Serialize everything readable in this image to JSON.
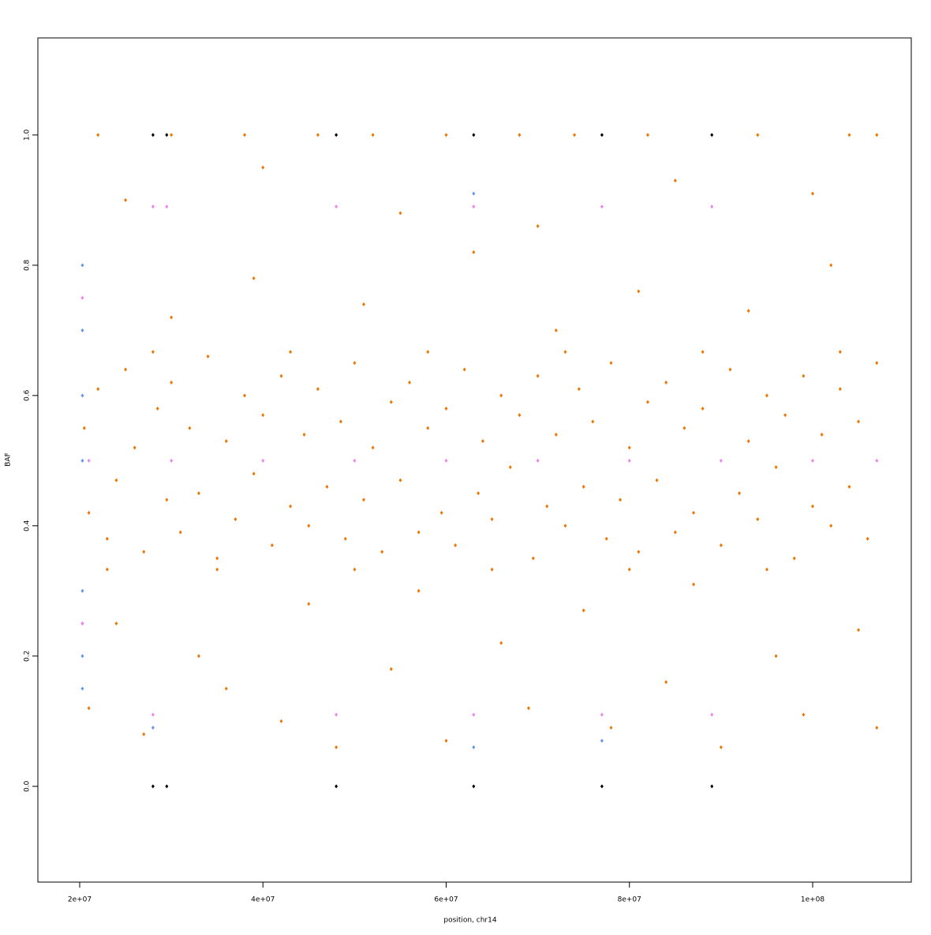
{
  "chart_data": {
    "type": "scatter",
    "xlabel": "position, chr14",
    "ylabel": "BAF",
    "xlim": [
      15436000,
      110764000
    ],
    "ylim": [
      -0.147,
      1.149
    ],
    "xticks": [
      {
        "value": 20000000,
        "label": "2e+07"
      },
      {
        "value": 40000000,
        "label": "4e+07"
      },
      {
        "value": 60000000,
        "label": "6e+07"
      },
      {
        "value": 80000000,
        "label": "8e+07"
      },
      {
        "value": 100000000,
        "label": "1e+08"
      }
    ],
    "yticks": [
      {
        "value": 0,
        "label": "0.0"
      },
      0.2,
      0.4,
      0.6,
      0.8,
      {
        "value": 1,
        "label": "1.0"
      }
    ],
    "series": [
      {
        "color": "#ee7600",
        "x": [
          20500000,
          21000000,
          22000000,
          23000000,
          24000000,
          25000000,
          26000000,
          27000000,
          28500000,
          29500000,
          30000000,
          31000000,
          32000000,
          33000000,
          34000000,
          35000000,
          36000000,
          37000000,
          38000000,
          39000000,
          40000000,
          41000000,
          42000000,
          43000000,
          44500000,
          45000000,
          46000000,
          47000000,
          48500000,
          49000000,
          50000000,
          51000000,
          52000000,
          53000000,
          54000000,
          55000000,
          56000000,
          57000000,
          58000000,
          59500000,
          60000000,
          61000000,
          62000000,
          63500000,
          64000000,
          65000000,
          66000000,
          67000000,
          68000000,
          69500000,
          70000000,
          71000000,
          72000000,
          73000000,
          74500000,
          75000000,
          76000000,
          77500000,
          78000000,
          79000000,
          80000000,
          81000000,
          82000000,
          83000000,
          84000000,
          85000000,
          86000000,
          87000000,
          88000000,
          90000000,
          91000000,
          92000000,
          93000000,
          94000000,
          95000000,
          96000000,
          97000000,
          98000000,
          99000000,
          100000000,
          101000000,
          102000000,
          103000000,
          104000000,
          105000000,
          106000000,
          107000000,
          21000000,
          24000000,
          27000000,
          30000000,
          33000000,
          36000000,
          39000000,
          42000000,
          45000000,
          48000000,
          51000000,
          54000000,
          57000000,
          60000000,
          63000000,
          66000000,
          69000000,
          72000000,
          75000000,
          78000000,
          81000000,
          84000000,
          87000000,
          90000000,
          93000000,
          96000000,
          99000000,
          102000000,
          105000000,
          107000000,
          25000000,
          40000000,
          55000000,
          70000000,
          85000000,
          100000000,
          22000000,
          30000000,
          38000000,
          46000000,
          52000000,
          60000000,
          68000000,
          74000000,
          82000000,
          94000000,
          104000000,
          107000000,
          23000000,
          35000000,
          50000000,
          65000000,
          80000000,
          95000000,
          28000000,
          43000000,
          58000000,
          73000000,
          88000000,
          103000000
        ],
        "values": [
          0.55,
          0.42,
          0.61,
          0.38,
          0.47,
          0.64,
          0.52,
          0.36,
          0.58,
          0.44,
          0.62,
          0.39,
          0.55,
          0.45,
          0.66,
          0.35,
          0.53,
          0.41,
          0.6,
          0.48,
          0.57,
          0.37,
          0.63,
          0.43,
          0.54,
          0.4,
          0.61,
          0.46,
          0.56,
          0.38,
          0.65,
          0.44,
          0.52,
          0.36,
          0.59,
          0.47,
          0.62,
          0.39,
          0.55,
          0.42,
          0.58,
          0.37,
          0.64,
          0.45,
          0.53,
          0.41,
          0.6,
          0.49,
          0.57,
          0.35,
          0.63,
          0.43,
          0.54,
          0.4,
          0.61,
          0.46,
          0.56,
          0.38,
          0.65,
          0.44,
          0.52,
          0.36,
          0.59,
          0.47,
          0.62,
          0.39,
          0.55,
          0.42,
          0.58,
          0.37,
          0.64,
          0.45,
          0.53,
          0.41,
          0.6,
          0.49,
          0.57,
          0.35,
          0.63,
          0.43,
          0.54,
          0.4,
          0.61,
          0.46,
          0.56,
          0.38,
          0.65,
          0.12,
          0.25,
          0.08,
          0.72,
          0.2,
          0.15,
          0.78,
          0.1,
          0.28,
          0.06,
          0.74,
          0.18,
          0.3,
          0.07,
          0.82,
          0.22,
          0.12,
          0.7,
          0.27,
          0.09,
          0.76,
          0.16,
          0.31,
          0.06,
          0.73,
          0.2,
          0.11,
          0.8,
          0.24,
          0.09,
          0.9,
          0.95,
          0.88,
          0.86,
          0.93,
          0.91,
          1,
          1,
          1,
          1,
          1,
          1,
          1,
          1,
          1,
          1,
          1,
          1,
          0.333,
          0.333,
          0.333,
          0.333,
          0.333,
          0.333,
          0.667,
          0.667,
          0.667,
          0.667,
          0.667,
          0.667
        ]
      },
      {
        "color": "#6495ed",
        "x": [
          20300000,
          20300000,
          20300000,
          20300000,
          20300000,
          20300000,
          20300000,
          20300000,
          28000000,
          63000000,
          63000000,
          77000000
        ],
        "values": [
          0.2,
          0.3,
          0.5,
          0.6,
          0.7,
          0.8,
          0.15,
          0.25,
          0.09,
          0.91,
          0.06,
          0.07
        ]
      },
      {
        "color": "#ee82ee",
        "x": [
          21000000,
          30000000,
          40000000,
          50000000,
          60000000,
          70000000,
          80000000,
          90000000,
          100000000,
          107000000,
          28000000,
          29500000,
          48000000,
          63000000,
          77000000,
          89000000,
          28000000,
          48000000,
          63000000,
          77000000,
          89000000,
          20300000,
          20300000
        ],
        "values": [
          0.5,
          0.5,
          0.5,
          0.5,
          0.5,
          0.5,
          0.5,
          0.5,
          0.5,
          0.5,
          0.89,
          0.89,
          0.89,
          0.89,
          0.89,
          0.89,
          0.11,
          0.11,
          0.11,
          0.11,
          0.11,
          0.75,
          0.25
        ]
      },
      {
        "color": "#000000",
        "x": [
          28000000,
          29500000,
          48000000,
          63000000,
          77000000,
          89000000,
          28000000,
          29500000,
          48000000,
          63000000,
          77000000,
          89000000
        ],
        "values": [
          0,
          0,
          0,
          0,
          0,
          0,
          1,
          1,
          1,
          1,
          1,
          1
        ]
      }
    ]
  }
}
